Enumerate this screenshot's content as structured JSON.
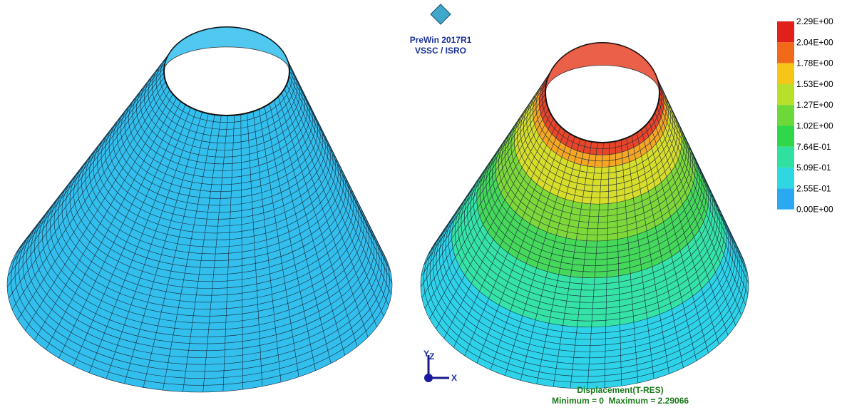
{
  "logo": {
    "line1": "PreWin 2017R1",
    "line2": "VSSC / ISRO"
  },
  "legend": {
    "labels": [
      "2.29E+00",
      "2.04E+00",
      "1.78E+00",
      "1.53E+00",
      "1.27E+00",
      "1.02E+00",
      "7.64E-01",
      "5.09E-01",
      "2.55E-01",
      "0.00E+00"
    ],
    "colors": [
      "#e0201a",
      "#f06a1a",
      "#f5c518",
      "#b8e02a",
      "#6cd83a",
      "#2fd84a",
      "#2fe0a0",
      "#2fd8e0",
      "#2aa8f0"
    ]
  },
  "triad": {
    "y": "Y",
    "z": "Z",
    "x": "X"
  },
  "result": {
    "title": "Displacement(T-RES)",
    "range": "Minimum = 0  Maximum = 2.29066"
  }
}
